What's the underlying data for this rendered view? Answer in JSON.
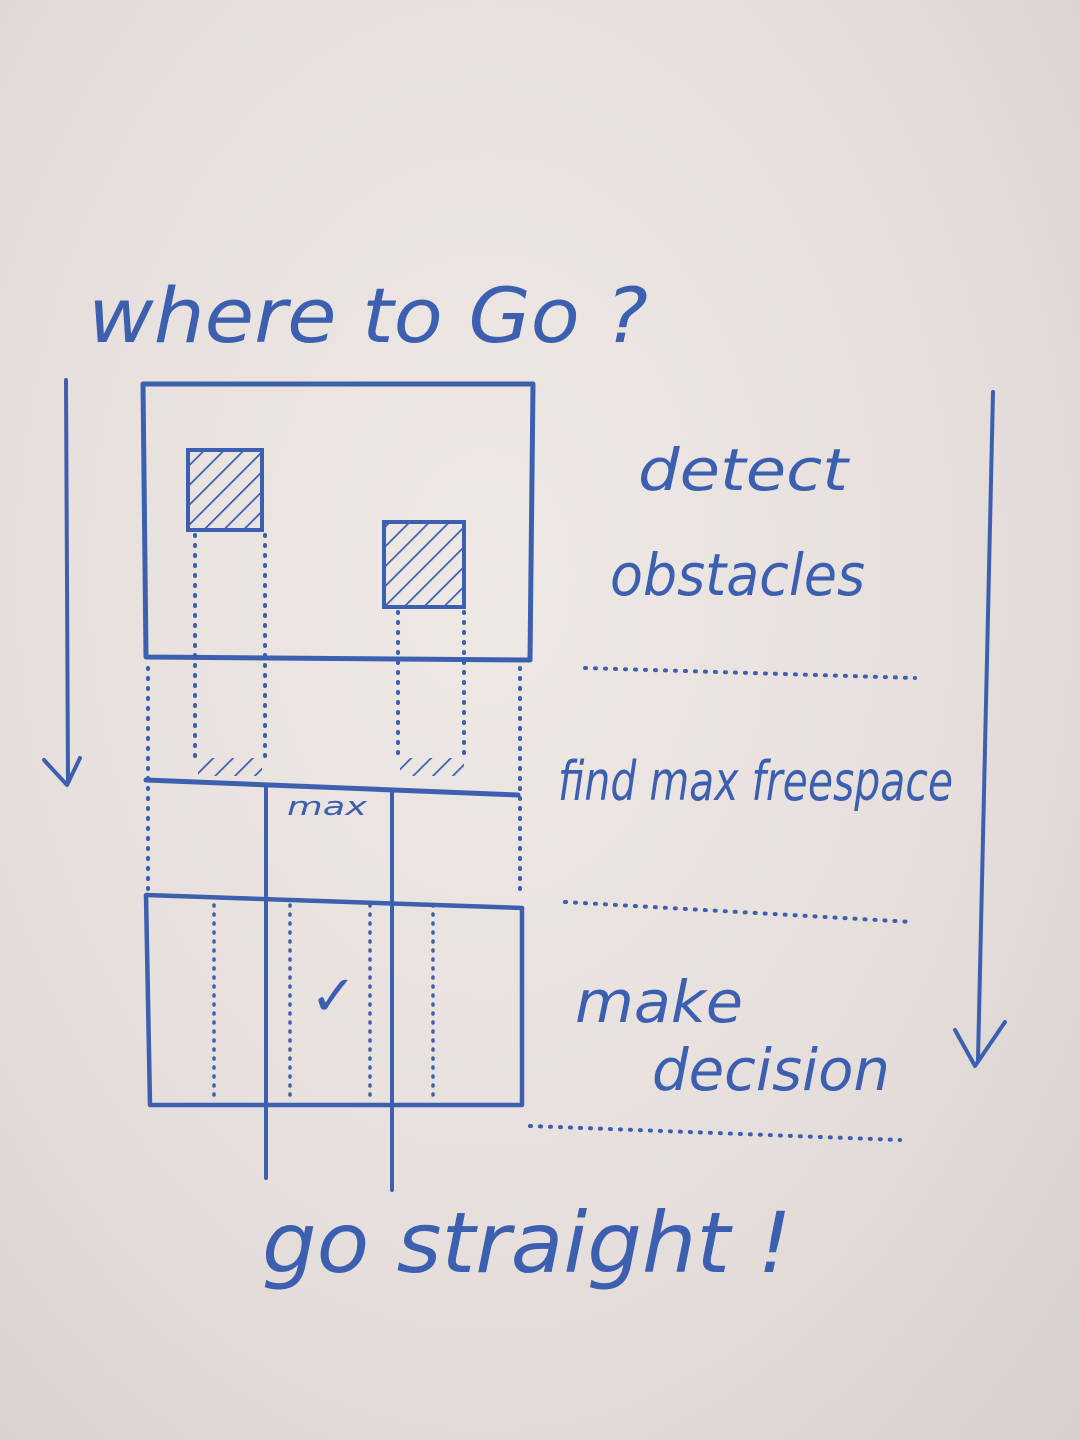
{
  "title": "where to Go ?",
  "labels": {
    "max": "max",
    "check": "✓"
  },
  "steps": [
    {
      "lines": [
        "detect",
        "obstacles"
      ]
    },
    {
      "lines": [
        "find max freespace"
      ]
    },
    {
      "lines": [
        "make",
        "decision"
      ]
    }
  ],
  "conclusion": "go straight !",
  "colors": {
    "ink": "#3c5fb0",
    "board": "#ebe5e2"
  }
}
